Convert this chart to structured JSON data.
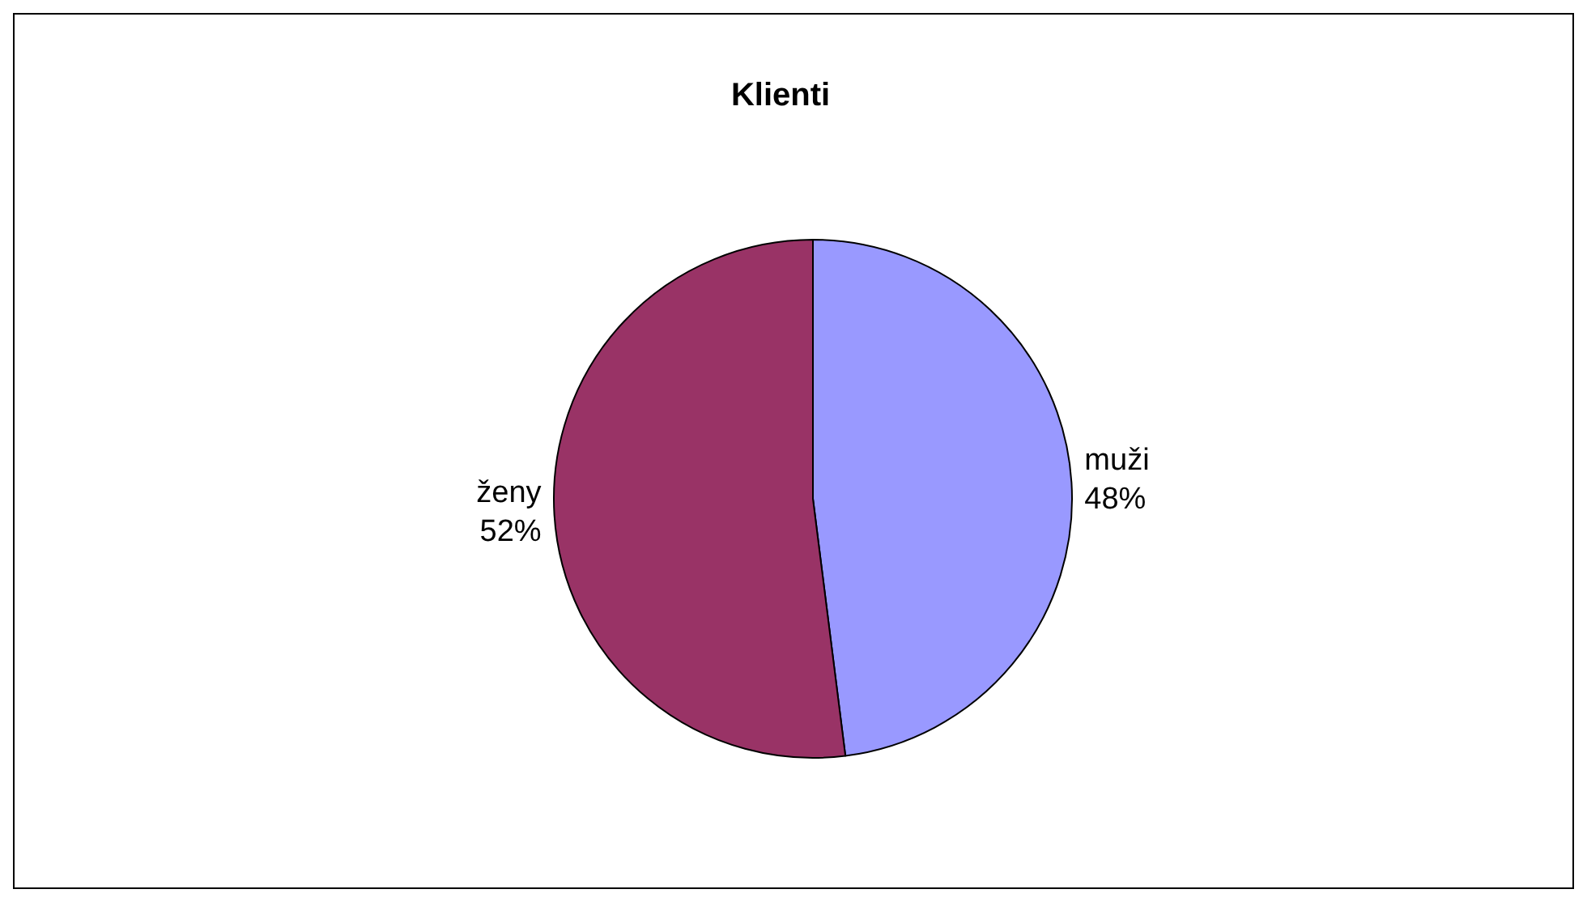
{
  "chart_data": {
    "type": "pie",
    "title": "Klienti",
    "categories": [
      "muži",
      "ženy"
    ],
    "values": [
      48,
      52
    ],
    "value_labels": [
      "48%",
      "52%"
    ],
    "colors": [
      "#9999ff",
      "#993366"
    ],
    "legend": false
  }
}
